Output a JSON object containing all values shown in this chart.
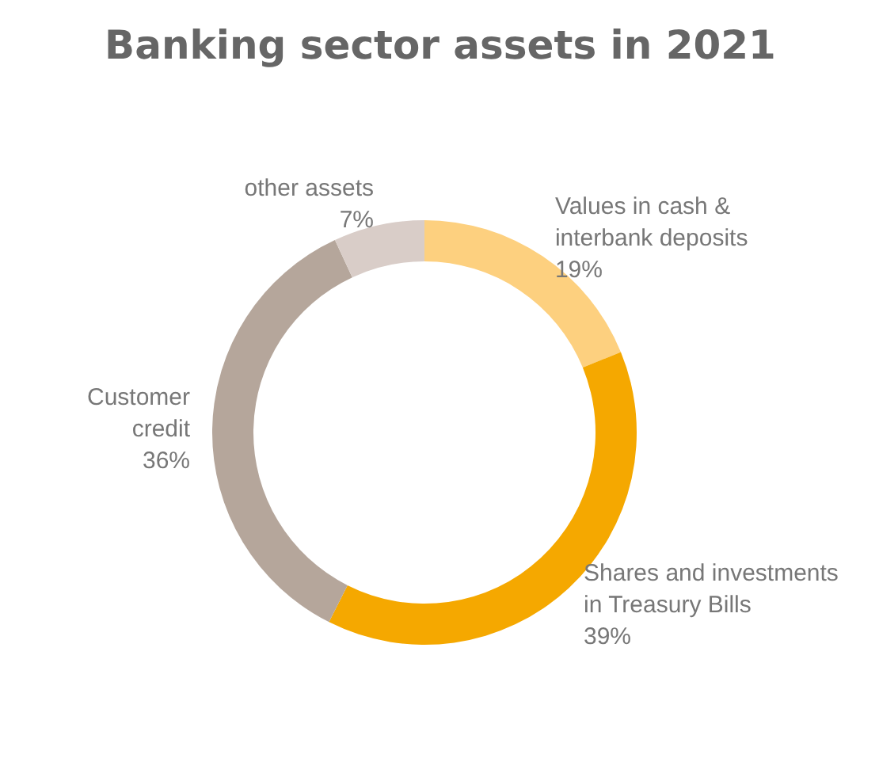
{
  "chart_data": {
    "type": "donut",
    "title": "Banking sector assets in 2021",
    "categories": [
      "Values in cash & interbank deposits",
      "Shares and investments in Treasury Bills",
      "Customer credit",
      "other assets"
    ],
    "values": [
      19,
      39,
      36,
      7
    ],
    "value_labels": [
      "19%",
      "39%",
      "36%",
      "7%"
    ],
    "colors": [
      "#fdd07f",
      "#f5a800",
      "#b5a69b",
      "#d9cdc8"
    ]
  }
}
